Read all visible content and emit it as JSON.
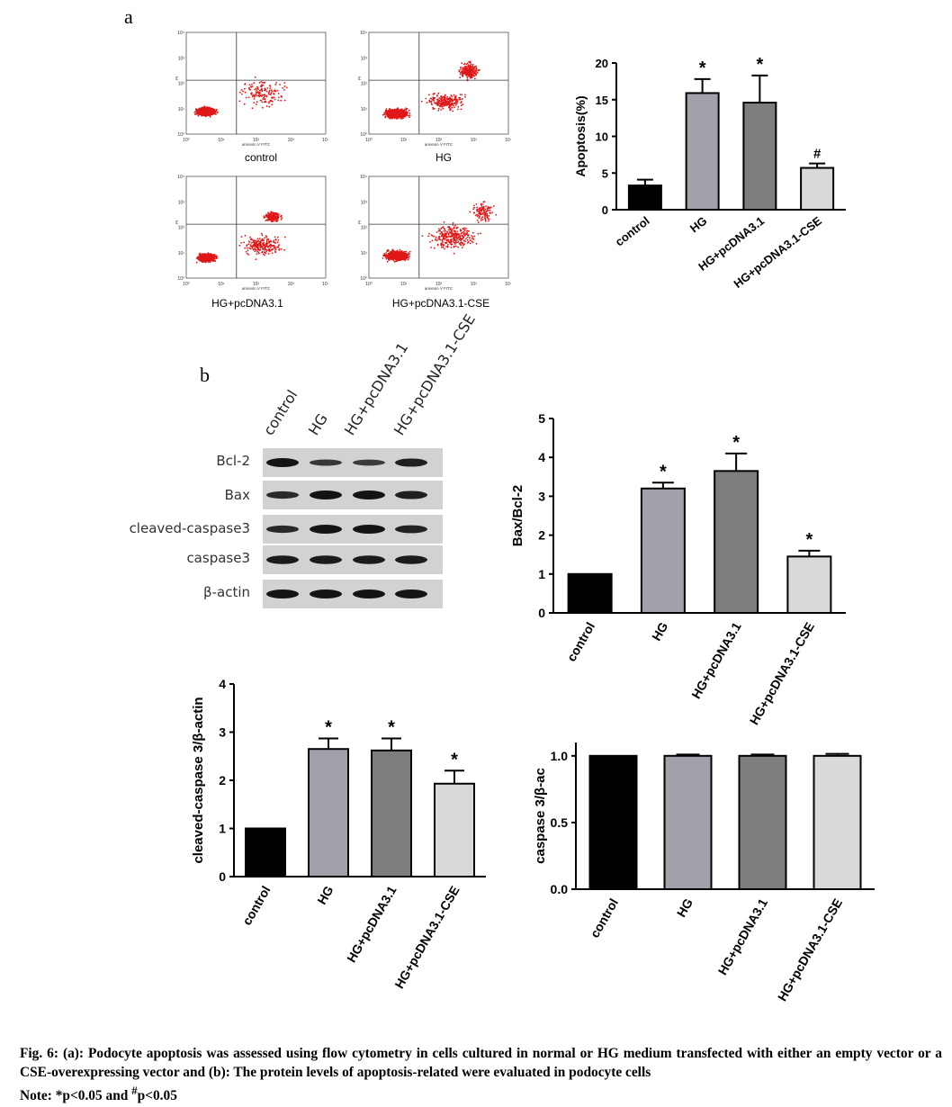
{
  "panel_a": {
    "label": "a",
    "flow_axis": {
      "xlabel": "annexin V FITC",
      "ylabel": "PI",
      "ticks": [
        "10⁰",
        "10¹",
        "10²",
        "10³",
        "10⁴"
      ]
    },
    "flow_plots": [
      {
        "name": "control"
      },
      {
        "name": "HG"
      },
      {
        "name": "HG+pcDNA3.1"
      },
      {
        "name": "HG+pcDNA3.1-CSE"
      }
    ]
  },
  "panel_b": {
    "label": "b",
    "lanes": [
      "control",
      "HG",
      "HG+pcDNA3.1",
      "HG+pcDNA3.1-CSE"
    ],
    "blot_rows": [
      "Bcl-2",
      "Bax",
      "cleaved-caspase3",
      "caspase3",
      "β-actin"
    ],
    "blot_intensity": [
      [
        1.0,
        0.5,
        0.45,
        0.85
      ],
      [
        0.7,
        1.0,
        1.0,
        0.85
      ],
      [
        0.7,
        1.0,
        1.0,
        0.8
      ],
      [
        0.9,
        0.9,
        0.9,
        0.9
      ],
      [
        1.0,
        1.0,
        1.0,
        1.0
      ]
    ]
  },
  "colors": {
    "control": "#000000",
    "hg": "#a1a1a9",
    "hg_pc": "#7d7d7d",
    "hg_cse": "#d9d9d9",
    "dots": "#e01818"
  },
  "chart_data": [
    {
      "id": "apoptosis",
      "type": "bar",
      "categories": [
        "control",
        "HG",
        "HG+pcDNA3.1",
        "HG+pcDNA3.1-CSE"
      ],
      "values": [
        3.3,
        15.9,
        14.6,
        5.7
      ],
      "errors": [
        0.8,
        1.9,
        3.7,
        0.6
      ],
      "marks": [
        "",
        "*",
        "*",
        "#"
      ],
      "ylabel": "Apoptosis(%)",
      "ylim": [
        0,
        20
      ],
      "yticks": [
        "0",
        "5",
        "10",
        "15",
        "20"
      ]
    },
    {
      "id": "bax_bcl2",
      "type": "bar",
      "categories": [
        "control",
        "HG",
        "HG+pcDNA3.1",
        "HG+pcDNA3.1-CSE"
      ],
      "values": [
        1.0,
        3.2,
        3.65,
        1.45
      ],
      "errors": [
        0,
        0.15,
        0.45,
        0.15
      ],
      "marks": [
        "",
        "*",
        "*",
        "*"
      ],
      "ylabel": "Bax/Bcl-2",
      "ylim": [
        0,
        5
      ],
      "yticks": [
        "0",
        "1",
        "2",
        "3",
        "4",
        "5"
      ]
    },
    {
      "id": "cleaved_caspase",
      "type": "bar",
      "categories": [
        "control",
        "HG",
        "HG+pcDNA3.1",
        "HG+pcDNA3.1-CSE"
      ],
      "values": [
        1.0,
        2.65,
        2.62,
        1.93
      ],
      "errors": [
        0,
        0.22,
        0.25,
        0.27
      ],
      "marks": [
        "",
        "*",
        "*",
        "*"
      ],
      "ylabel": "cleaved-caspase 3/β-actin",
      "ylim": [
        0,
        4
      ],
      "yticks": [
        "0",
        "1",
        "2",
        "3",
        "4"
      ]
    },
    {
      "id": "caspase",
      "type": "bar",
      "categories": [
        "control",
        "HG",
        "HG+pcDNA3.1",
        "HG+pcDNA3.1-CSE"
      ],
      "values": [
        1.0,
        1.0,
        1.0,
        1.0
      ],
      "errors": [
        0,
        0.01,
        0.01,
        0.015
      ],
      "marks": [
        "",
        "",
        "",
        ""
      ],
      "ylabel": "caspase 3/β-ac",
      "ylim": [
        0,
        1.1
      ],
      "yticks": [
        "0.0",
        "0.5",
        "1.0"
      ],
      "ytick_values": [
        0,
        0.5,
        1.0
      ]
    }
  ],
  "caption": {
    "line1": "Fig. 6: (a): Podocyte apoptosis was assessed using flow cytometry in cells cultured in normal or HG medium transfected with either an empty vector or a CSE-overexpressing vector and (b): The protein levels of apoptosis-related were evaluated in podocyte cells",
    "note_prefix": "Note: *p<0.05 and ",
    "note_sup": "#",
    "note_suffix": "p<0.05"
  }
}
